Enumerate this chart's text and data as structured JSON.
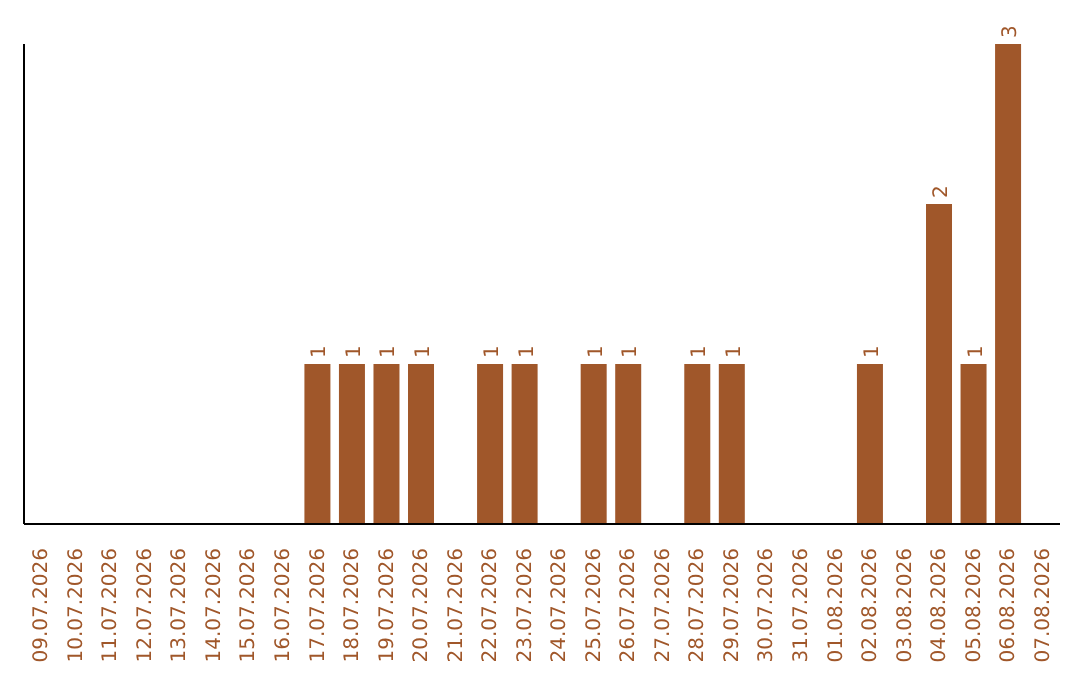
{
  "chart_data": {
    "type": "bar",
    "categories": [
      "09.07.2026",
      "10.07.2026",
      "11.07.2026",
      "12.07.2026",
      "13.07.2026",
      "14.07.2026",
      "15.07.2026",
      "16.07.2026",
      "17.07.2026",
      "18.07.2026",
      "19.07.2026",
      "20.07.2026",
      "21.07.2026",
      "22.07.2026",
      "23.07.2026",
      "24.07.2026",
      "25.07.2026",
      "26.07.2026",
      "27.07.2026",
      "28.07.2026",
      "29.07.2026",
      "30.07.2026",
      "31.07.2026",
      "01.08.2026",
      "02.08.2026",
      "03.08.2026",
      "04.08.2026",
      "05.08.2026",
      "06.08.2026",
      "07.08.2026"
    ],
    "values": [
      0,
      0,
      0,
      0,
      0,
      0,
      0,
      0,
      1,
      1,
      1,
      1,
      0,
      1,
      1,
      0,
      1,
      1,
      0,
      1,
      1,
      0,
      0,
      0,
      1,
      0,
      2,
      1,
      3,
      0
    ],
    "value_labels": [
      null,
      null,
      null,
      null,
      null,
      null,
      null,
      null,
      "1",
      "1",
      "1",
      "1",
      null,
      "1",
      "1",
      null,
      "1",
      "1",
      null,
      "1",
      "1",
      null,
      null,
      null,
      "1",
      null,
      "2",
      "1",
      "3",
      null
    ],
    "color": "#a0572a"
  }
}
